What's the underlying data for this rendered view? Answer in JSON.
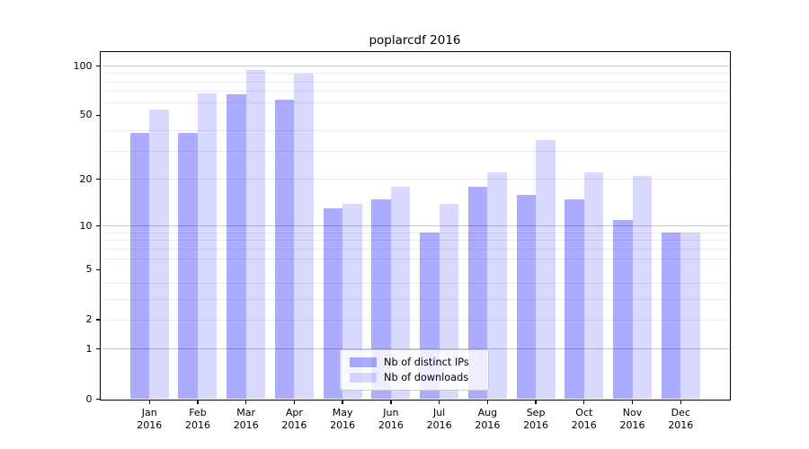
{
  "chart_data": {
    "type": "bar",
    "title": "poplarcdf 2016",
    "categories": [
      "Jan 2016",
      "Feb 2016",
      "Mar 2016",
      "Apr 2016",
      "May 2016",
      "Jun 2016",
      "Jul 2016",
      "Aug 2016",
      "Sep 2016",
      "Oct 2016",
      "Nov 2016",
      "Dec 2016"
    ],
    "months": [
      "Jan",
      "Feb",
      "Mar",
      "Apr",
      "May",
      "Jun",
      "Jul",
      "Aug",
      "Sep",
      "Oct",
      "Nov",
      "Dec"
    ],
    "year_label": "2016",
    "series": [
      {
        "name": "Nb of distinct IPs",
        "color": "rgba(0,0,255,0.33)",
        "values": [
          39,
          39,
          67,
          62,
          13,
          15,
          9,
          18,
          16,
          15,
          11,
          9
        ]
      },
      {
        "name": "Nb of downloads",
        "color": "rgba(0,0,255,0.15)",
        "values": [
          54,
          68,
          95,
          90,
          14,
          18,
          14,
          22,
          35,
          22,
          21,
          9
        ]
      }
    ],
    "yscale": "log1p-symlog",
    "ylim": [
      0,
      120
    ],
    "y_tick_labels": [
      "0",
      "1",
      "2",
      "5",
      "10",
      "20",
      "50",
      "100"
    ],
    "y_tick_values": [
      0,
      1,
      2,
      5,
      10,
      20,
      50,
      100
    ],
    "y_major_gridlines": [
      1,
      10,
      100
    ],
    "y_minor_gridlines": [
      2,
      3,
      4,
      6,
      7,
      8,
      9,
      20,
      30,
      40,
      60,
      70,
      80,
      90
    ],
    "legend_position": "lower center",
    "grid": true,
    "colors": {
      "bar_distinct_ips": "#ababff",
      "bar_downloads": "#d9d9ff",
      "grid_major": "#c8c8c8",
      "grid_minor": "#ebebeb",
      "spine": "#000000",
      "text": "#000000",
      "legend_border": "#cccccc"
    }
  }
}
